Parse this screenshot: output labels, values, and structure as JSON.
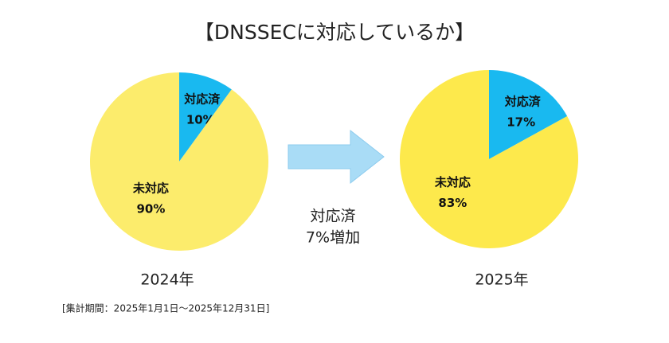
{
  "title": "【DNSSECに対応しているか】",
  "chart_data": [
    {
      "type": "pie",
      "title": "2024年",
      "categories": [
        "対応済",
        "未対応"
      ],
      "values": [
        10,
        90
      ],
      "value_labels": [
        "10%",
        "90%"
      ],
      "colors": [
        "#19b9f0",
        "#fcec6c"
      ]
    },
    {
      "type": "pie",
      "title": "2025年",
      "categories": [
        "対応済",
        "未対応"
      ],
      "values": [
        17,
        83
      ],
      "value_labels": [
        "17%",
        "83%"
      ],
      "colors": [
        "#19b9f0",
        "#fde94c"
      ]
    }
  ],
  "annotation": [
    "対応済",
    "7%増加"
  ],
  "note": "[集計期間：2025年1月1日～2025年12月31日]"
}
